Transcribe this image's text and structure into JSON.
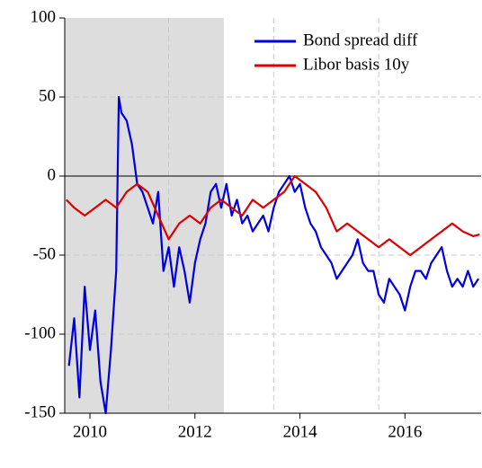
{
  "chart_data": {
    "type": "line",
    "xlim": [
      2009.52,
      2017.45
    ],
    "ylim": [
      -150,
      100
    ],
    "xticks": [
      2010,
      2012,
      2014,
      2016
    ],
    "yticks": [
      -150,
      -100,
      -50,
      0,
      50,
      100
    ],
    "xgrid": [
      2011.5,
      2013.5,
      2015.5
    ],
    "ygrid": [
      -100,
      -50,
      50
    ],
    "zero_line": 0,
    "shade": [
      2009.52,
      2012.55
    ],
    "shade_color": "#dddddd",
    "legend": "top-right",
    "series": [
      {
        "name": "Bond spread diff",
        "color": "#0000dd",
        "x": [
          2009.6,
          2009.7,
          2009.8,
          2009.9,
          2010.0,
          2010.1,
          2010.2,
          2010.3,
          2010.4,
          2010.5,
          2010.55,
          2010.6,
          2010.7,
          2010.8,
          2010.9,
          2011.0,
          2011.1,
          2011.2,
          2011.3,
          2011.4,
          2011.5,
          2011.6,
          2011.7,
          2011.8,
          2011.9,
          2012.0,
          2012.1,
          2012.2,
          2012.3,
          2012.4,
          2012.5,
          2012.6,
          2012.7,
          2012.8,
          2012.9,
          2013.0,
          2013.1,
          2013.2,
          2013.3,
          2013.4,
          2013.5,
          2013.6,
          2013.7,
          2013.8,
          2013.9,
          2014.0,
          2014.1,
          2014.2,
          2014.3,
          2014.4,
          2014.5,
          2014.6,
          2014.7,
          2014.8,
          2014.9,
          2015.0,
          2015.1,
          2015.2,
          2015.3,
          2015.4,
          2015.5,
          2015.6,
          2015.7,
          2015.8,
          2015.9,
          2016.0,
          2016.1,
          2016.2,
          2016.3,
          2016.4,
          2016.5,
          2016.6,
          2016.7,
          2016.8,
          2016.9,
          2017.0,
          2017.1,
          2017.2,
          2017.3,
          2017.4
        ],
        "values": [
          -120,
          -90,
          -140,
          -70,
          -110,
          -85,
          -130,
          -150,
          -110,
          -60,
          50,
          40,
          35,
          20,
          -5,
          -10,
          -20,
          -30,
          -10,
          -60,
          -45,
          -70,
          -45,
          -60,
          -80,
          -55,
          -40,
          -30,
          -10,
          -5,
          -20,
          -5,
          -25,
          -15,
          -30,
          -25,
          -35,
          -30,
          -25,
          -35,
          -20,
          -10,
          -5,
          0,
          -10,
          -5,
          -20,
          -30,
          -35,
          -45,
          -50,
          -55,
          -65,
          -60,
          -55,
          -50,
          -40,
          -55,
          -60,
          -60,
          -75,
          -80,
          -65,
          -70,
          -75,
          -85,
          -70,
          -60,
          -60,
          -65,
          -55,
          -50,
          -45,
          -60,
          -70,
          -65,
          -70,
          -60,
          -70,
          -65
        ]
      },
      {
        "name": "Libor basis 10y",
        "color": "#dd0000",
        "x": [
          2009.55,
          2009.7,
          2009.9,
          2010.1,
          2010.3,
          2010.5,
          2010.7,
          2010.9,
          2011.1,
          2011.3,
          2011.5,
          2011.7,
          2011.9,
          2012.1,
          2012.3,
          2012.5,
          2012.7,
          2012.9,
          2013.1,
          2013.3,
          2013.5,
          2013.7,
          2013.9,
          2014.1,
          2014.3,
          2014.5,
          2014.7,
          2014.9,
          2015.1,
          2015.3,
          2015.5,
          2015.7,
          2015.9,
          2016.1,
          2016.3,
          2016.5,
          2016.7,
          2016.9,
          2017.1,
          2017.3,
          2017.42
        ],
        "values": [
          -15,
          -20,
          -25,
          -20,
          -15,
          -20,
          -10,
          -5,
          -10,
          -25,
          -40,
          -30,
          -25,
          -30,
          -20,
          -15,
          -20,
          -25,
          -15,
          -20,
          -15,
          -10,
          0,
          -5,
          -10,
          -20,
          -35,
          -30,
          -35,
          -40,
          -45,
          -40,
          -45,
          -50,
          -45,
          -40,
          -35,
          -30,
          -35,
          -38,
          -37
        ]
      }
    ]
  }
}
